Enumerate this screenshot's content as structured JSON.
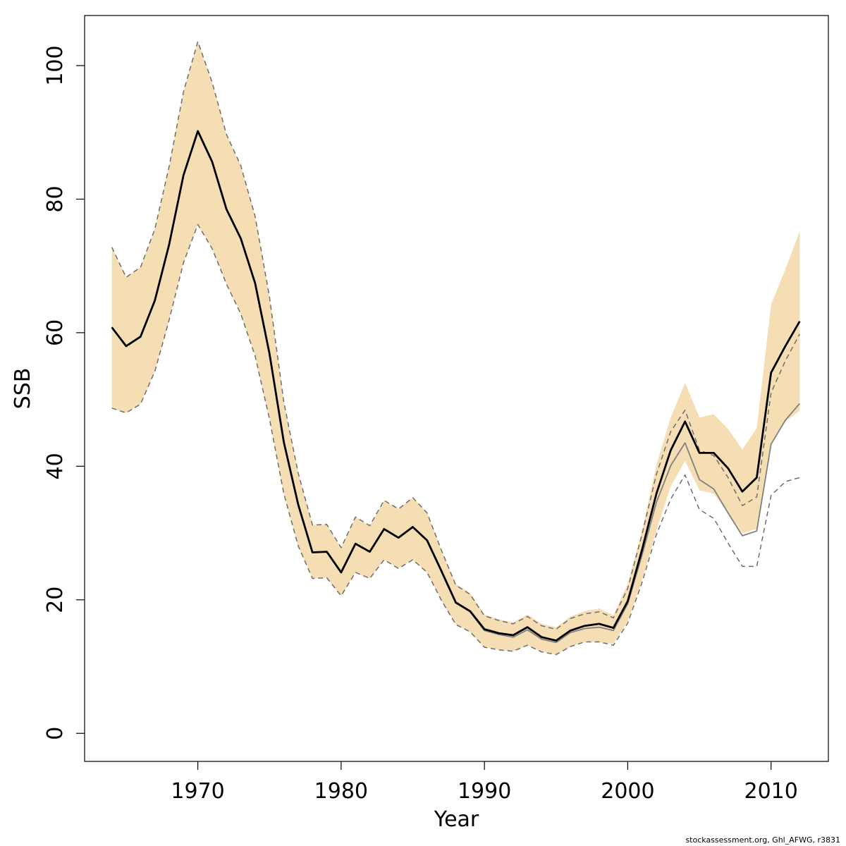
{
  "footer": "stockassessment.org, Ghl_AFWG, r3831",
  "chart_data": {
    "type": "line",
    "title": "",
    "xlabel": "Year",
    "ylabel": "SSB",
    "xlim": [
      1962.1,
      2014
    ],
    "ylim": [
      -4.2,
      107.5
    ],
    "xticks": [
      1970,
      1980,
      1990,
      2000,
      2010
    ],
    "yticks": [
      0,
      20,
      40,
      60,
      80,
      100
    ],
    "grid": false,
    "colors": {
      "band": "#f5deb3",
      "current": "#000000",
      "previous": "#808080",
      "dashed": "#6e6e6e"
    },
    "x": [
      1964,
      1965,
      1966,
      1967,
      1968,
      1969,
      1970,
      1971,
      1972,
      1973,
      1974,
      1975,
      1976,
      1977,
      1978,
      1979,
      1980,
      1981,
      1982,
      1983,
      1984,
      1985,
      1986,
      1987,
      1988,
      1989,
      1990,
      1991,
      1992,
      1993,
      1994,
      1995,
      1996,
      1997,
      1998,
      1999,
      2000,
      2001,
      2002,
      2003,
      2004,
      2005,
      2006,
      2007,
      2008,
      2009,
      2010,
      2011,
      2012
    ],
    "band": {
      "lower": [
        48.7,
        48.0,
        49.3,
        54.2,
        61.9,
        70.5,
        76.2,
        72.6,
        67.3,
        62.8,
        56.5,
        47.1,
        35.9,
        28.1,
        23.2,
        23.3,
        20.6,
        24.1,
        23.2,
        26.0,
        24.7,
        26.0,
        24.1,
        19.9,
        16.3,
        15.2,
        12.9,
        12.5,
        12.3,
        13.2,
        12.2,
        11.8,
        13.0,
        13.7,
        13.7,
        13.4,
        16.8,
        22.9,
        30.4,
        37.0,
        40.8,
        36.4,
        35.9,
        33.0,
        30.0,
        30.6,
        43.3,
        46.7,
        48.3
      ],
      "upper": [
        72.8,
        68.3,
        69.8,
        75.5,
        84.9,
        96.1,
        103.6,
        97.5,
        89.7,
        85.0,
        77.4,
        65.4,
        49.6,
        39.0,
        31.2,
        31.3,
        27.8,
        32.4,
        31.1,
        34.9,
        33.6,
        35.3,
        33.0,
        27.4,
        22.4,
        21.0,
        17.8,
        17.1,
        16.6,
        17.8,
        16.4,
        15.9,
        17.5,
        18.3,
        18.7,
        17.7,
        22.4,
        30.4,
        40.2,
        47.3,
        52.5,
        47.3,
        47.8,
        45.6,
        42.5,
        45.7,
        64.2,
        69.5,
        75.2
      ]
    },
    "series": [
      {
        "values": [
          60.8,
          58.0,
          59.4,
          64.8,
          73.2,
          83.6,
          90.2,
          85.6,
          78.5,
          74.1,
          67.4,
          56.9,
          43.6,
          34.3,
          27.1,
          27.2,
          24.1,
          28.4,
          27.2,
          30.6,
          29.3,
          30.9,
          28.9,
          24.3,
          19.6,
          18.3,
          15.6,
          15.0,
          14.7,
          15.9,
          14.4,
          13.9,
          15.4,
          16.1,
          16.4,
          15.8,
          19.8,
          27.5,
          35.9,
          42.4,
          46.7,
          42.0,
          42.0,
          39.7,
          36.2,
          38.3,
          54.0,
          58.0,
          61.7
        ],
        "style": "solid",
        "color": "#000000"
      },
      {
        "values": [
          60.8,
          58.0,
          59.4,
          64.8,
          73.2,
          83.6,
          90.2,
          85.6,
          78.5,
          74.1,
          67.4,
          56.9,
          43.6,
          34.3,
          27.1,
          27.2,
          24.1,
          28.4,
          27.2,
          30.6,
          29.3,
          30.9,
          28.9,
          24.3,
          19.5,
          18.2,
          15.4,
          14.8,
          14.4,
          15.5,
          14.1,
          13.6,
          15.1,
          15.7,
          15.9,
          15.4,
          19.4,
          26.7,
          34.6,
          40.1,
          43.5,
          38.0,
          36.6,
          33.0,
          29.6,
          30.3,
          43.3,
          46.9,
          49.4
        ],
        "style": "solid",
        "color": "#808080"
      },
      {
        "values": [
          72.8,
          68.3,
          69.8,
          75.5,
          84.9,
          96.1,
          103.6,
          97.5,
          89.7,
          85.0,
          77.4,
          65.4,
          49.6,
          39.0,
          31.2,
          31.3,
          27.8,
          32.4,
          31.1,
          34.9,
          33.6,
          35.3,
          33.0,
          27.4,
          22.2,
          20.8,
          17.6,
          16.9,
          16.4,
          17.5,
          16.1,
          15.6,
          17.2,
          17.9,
          18.2,
          17.3,
          21.7,
          29.8,
          38.8,
          45.2,
          48.4,
          42.4,
          41.6,
          38.3,
          34.1,
          35.4,
          51.0,
          55.8,
          59.8
        ],
        "style": "dashed",
        "color": "#6e6e6e"
      },
      {
        "values": [
          48.7,
          48.0,
          49.3,
          54.2,
          61.9,
          70.5,
          76.2,
          72.6,
          67.3,
          62.8,
          56.5,
          47.1,
          35.9,
          28.1,
          23.2,
          23.3,
          20.6,
          24.1,
          23.2,
          26.0,
          24.7,
          26.0,
          24.1,
          19.9,
          16.3,
          15.2,
          12.9,
          12.5,
          12.3,
          13.2,
          12.2,
          11.8,
          13.0,
          13.7,
          13.7,
          13.2,
          16.5,
          22.6,
          29.8,
          35.1,
          38.7,
          33.5,
          32.2,
          28.5,
          25.0,
          25.0,
          35.6,
          37.7,
          38.3
        ],
        "style": "dashed",
        "color": "#6e6e6e"
      }
    ]
  }
}
